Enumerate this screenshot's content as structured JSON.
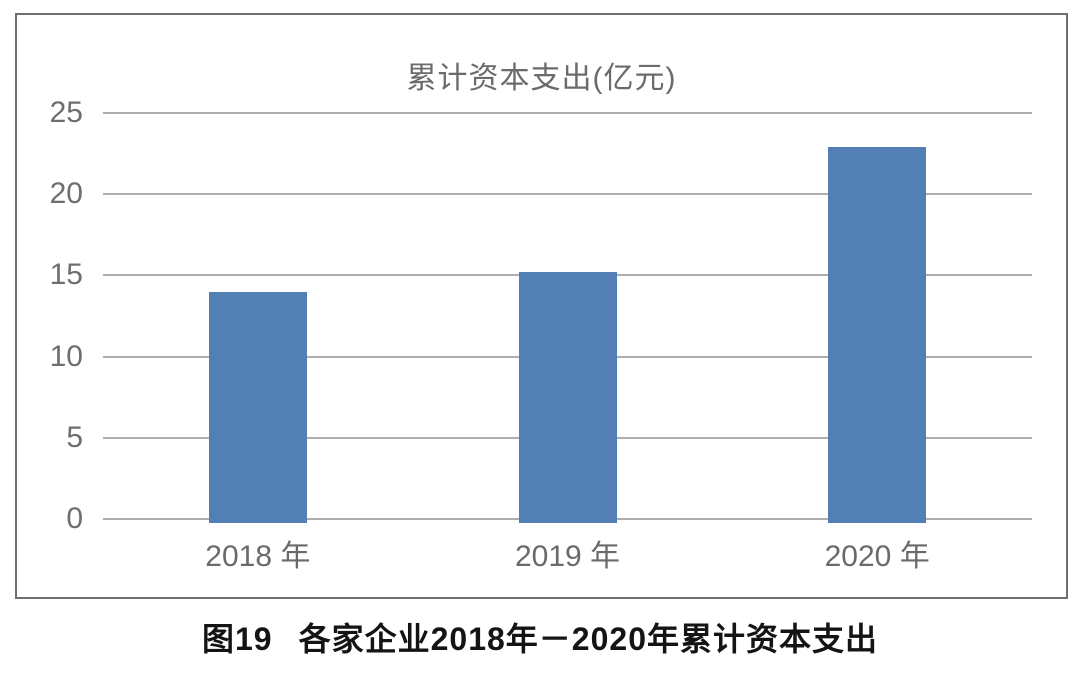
{
  "chart_data": {
    "type": "bar",
    "title": "累计资本支出(亿元)",
    "categories": [
      "2018 年",
      "2019 年",
      "2020 年"
    ],
    "values": [
      14,
      15.2,
      22.9
    ],
    "xlabel": "",
    "ylabel": "",
    "ylim": [
      0,
      25
    ],
    "yticks": [
      0,
      5,
      10,
      15,
      20,
      25
    ],
    "grid": true,
    "legend_position": "none",
    "bar_color": "#5280b4",
    "gridline_color": "#aeaeae",
    "axis_text_color": "#6e6e6e",
    "frame_border_color": "#6f6f6f"
  },
  "caption": {
    "label": "图19",
    "text": "各家企业2018年－2020年累计资本支出"
  }
}
